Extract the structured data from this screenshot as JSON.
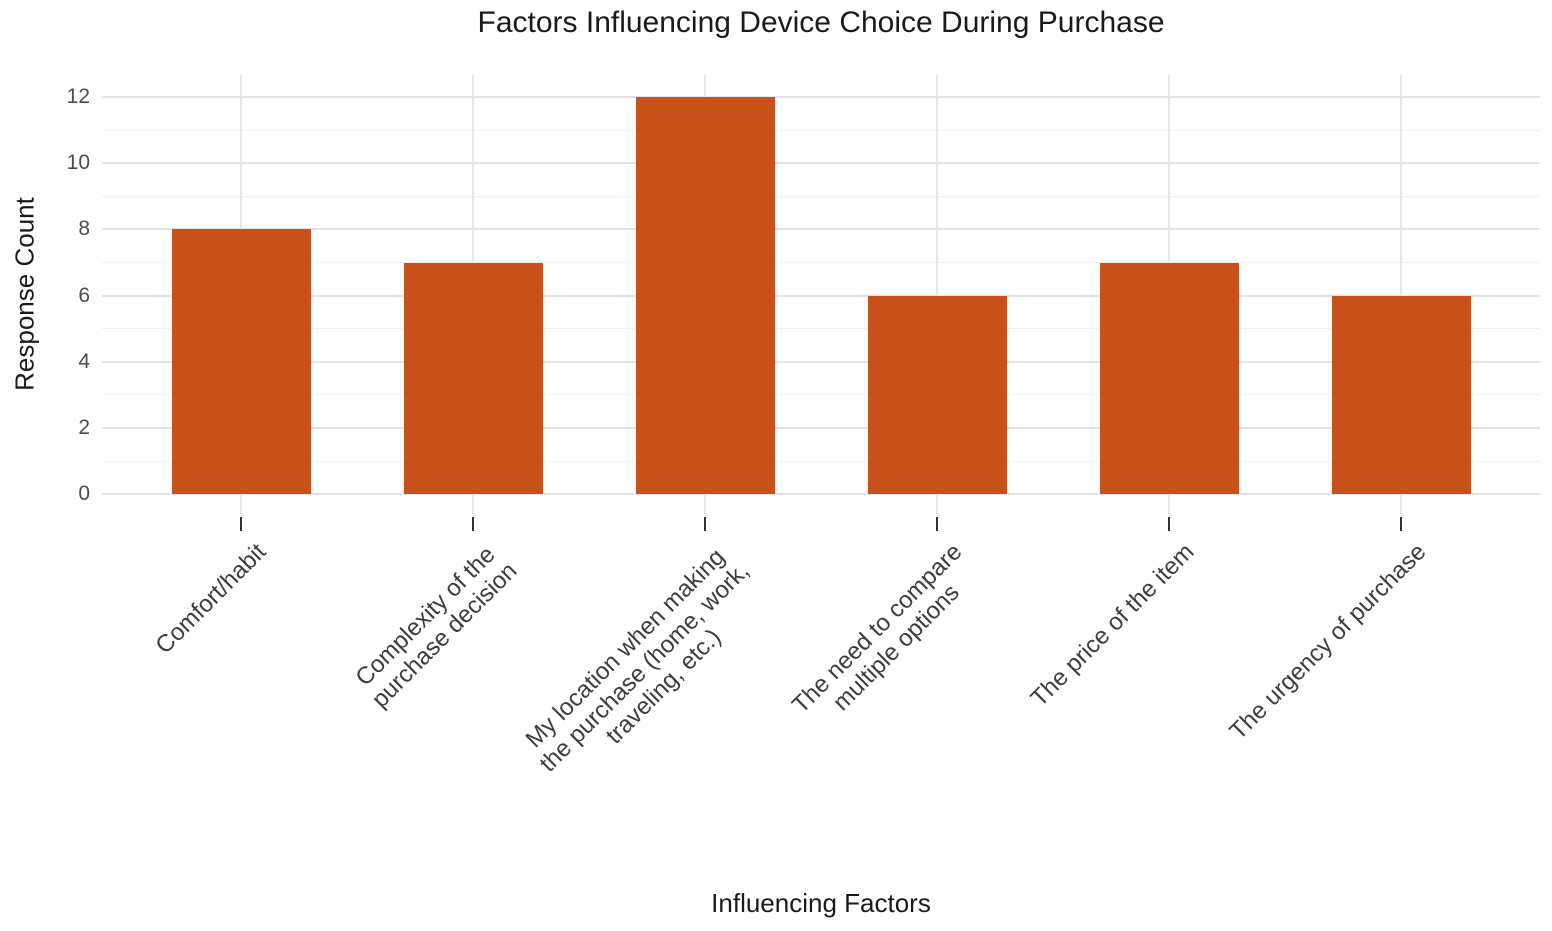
{
  "chart_data": {
    "type": "bar",
    "title": "Factors Influencing Device Choice During Purchase",
    "xlabel": "Influencing Factors",
    "ylabel": "Response Count",
    "categories": [
      "Comfort/habit",
      "Complexity of the purchase decision",
      "My location when making the purchase (home, work, traveling, etc.)",
      "The need to compare multiple options",
      "The price of the item",
      "The urgency of purchase"
    ],
    "category_wrapped_lines": [
      [
        "Comfort/habit"
      ],
      [
        "Complexity of the",
        "purchase decision"
      ],
      [
        "My location when making",
        "the purchase (home, work,",
        "traveling, etc.)"
      ],
      [
        "The need to compare",
        "multiple options"
      ],
      [
        "The price of the item"
      ],
      [
        "The urgency of purchase"
      ]
    ],
    "values": [
      8,
      7,
      12,
      6,
      7,
      6
    ],
    "ylim": [
      0,
      12
    ],
    "yticks": [
      0,
      2,
      4,
      6,
      8,
      10,
      12
    ],
    "minor_yticks": [
      1,
      3,
      5,
      7,
      9,
      11
    ],
    "grid": "horizontal major+minor gridlines, vertical gridline at each category",
    "legend_position": "none",
    "bar_color": "#C8511C",
    "colors": {
      "bar_fill": "#C8511C",
      "major_grid": "#E3E3E3",
      "minor_grid": "#F0F0F0",
      "vertical_grid": "#E6E6E6",
      "axis_tick": "#333333",
      "y_tick_text": "#4D4D4D",
      "x_tick_text": "#3D3D3D",
      "title_text": "#1A1A1A",
      "background": "#FFFFFF"
    }
  }
}
